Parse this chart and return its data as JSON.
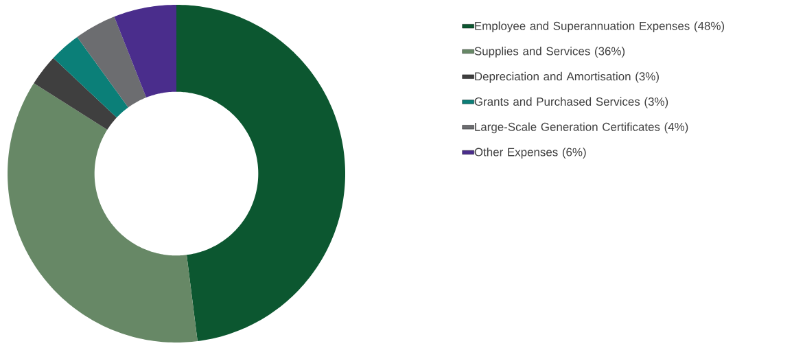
{
  "chart_data": {
    "type": "donut",
    "categories": [
      "Employee and Superannuation Expenses (48%)",
      "Supplies and Services (36%)",
      "Depreciation and Amortisation (3%)",
      "Grants and Purchased Services (3%)",
      "Large-Scale Generation Certificates (4%)",
      "Other Expenses (6%)"
    ],
    "values": [
      48,
      36,
      3,
      3,
      4,
      6
    ],
    "colors": [
      "#0c5730",
      "#678866",
      "#3f3f3f",
      "#0b7f78",
      "#6c6d70",
      "#4a2d8c"
    ],
    "legend": "right"
  }
}
